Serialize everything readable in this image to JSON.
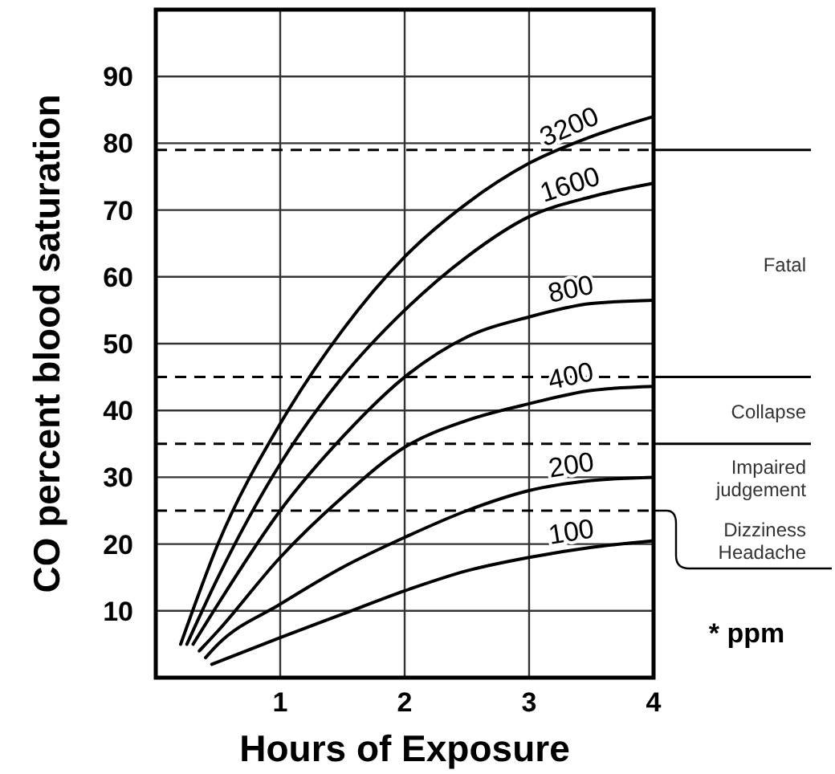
{
  "chart_data": {
    "type": "line",
    "xlabel": "Hours of Exposure",
    "ylabel": "CO percent blood saturation",
    "xlim": [
      0,
      4
    ],
    "xticks": [
      1,
      2,
      3,
      4
    ],
    "ylim": [
      0,
      100
    ],
    "yticks": [
      10,
      20,
      30,
      40,
      50,
      60,
      70,
      80,
      90
    ],
    "grid": true,
    "marker": "none",
    "line_style": "solid",
    "series": [
      {
        "name": "3200",
        "color": "#000000",
        "x": [
          0.2,
          0.5,
          1,
          1.5,
          2,
          2.5,
          3,
          3.5,
          4
        ],
        "values": [
          5,
          20,
          38,
          52,
          63,
          71,
          77,
          81,
          84
        ]
      },
      {
        "name": "1600",
        "color": "#000000",
        "x": [
          0.25,
          0.5,
          1,
          1.5,
          2,
          2.5,
          3,
          3.5,
          4
        ],
        "values": [
          5,
          15,
          32,
          45,
          55,
          63,
          69,
          72,
          74
        ]
      },
      {
        "name": "800",
        "color": "#000000",
        "x": [
          0.3,
          0.5,
          1,
          1.5,
          2,
          2.5,
          3,
          3.5,
          4
        ],
        "values": [
          5,
          11,
          25,
          36,
          45,
          51,
          54,
          56,
          56.5
        ]
      },
      {
        "name": "400",
        "color": "#000000",
        "x": [
          0.35,
          0.5,
          1,
          1.5,
          2,
          2.5,
          3,
          3.5,
          4
        ],
        "values": [
          4,
          7,
          18,
          27,
          34.5,
          38.5,
          41,
          43,
          43.6
        ]
      },
      {
        "name": "200",
        "color": "#000000",
        "x": [
          0.4,
          0.5,
          1,
          1.5,
          2,
          2.5,
          3,
          3.5,
          4
        ],
        "values": [
          3,
          5,
          11,
          16.5,
          21,
          25,
          28,
          29.5,
          30
        ]
      },
      {
        "name": "100",
        "color": "#000000",
        "x": [
          0.45,
          1,
          1.5,
          2,
          2.5,
          3,
          3.5,
          4
        ],
        "values": [
          2,
          6,
          9.5,
          13,
          16,
          18,
          19.5,
          20.5
        ]
      }
    ],
    "ref_lines": [
      {
        "axis": "y",
        "value": 79,
        "line_style": "dashed"
      },
      {
        "axis": "y",
        "value": 45,
        "line_style": "dashed"
      },
      {
        "axis": "y",
        "value": 35,
        "line_style": "dashed"
      },
      {
        "axis": "y",
        "value": 25,
        "line_style": "dashed"
      }
    ],
    "annotations": [
      "Fatal",
      "Collapse",
      "Impaired judgement",
      "Dizziness Headache",
      "* ppm"
    ]
  }
}
